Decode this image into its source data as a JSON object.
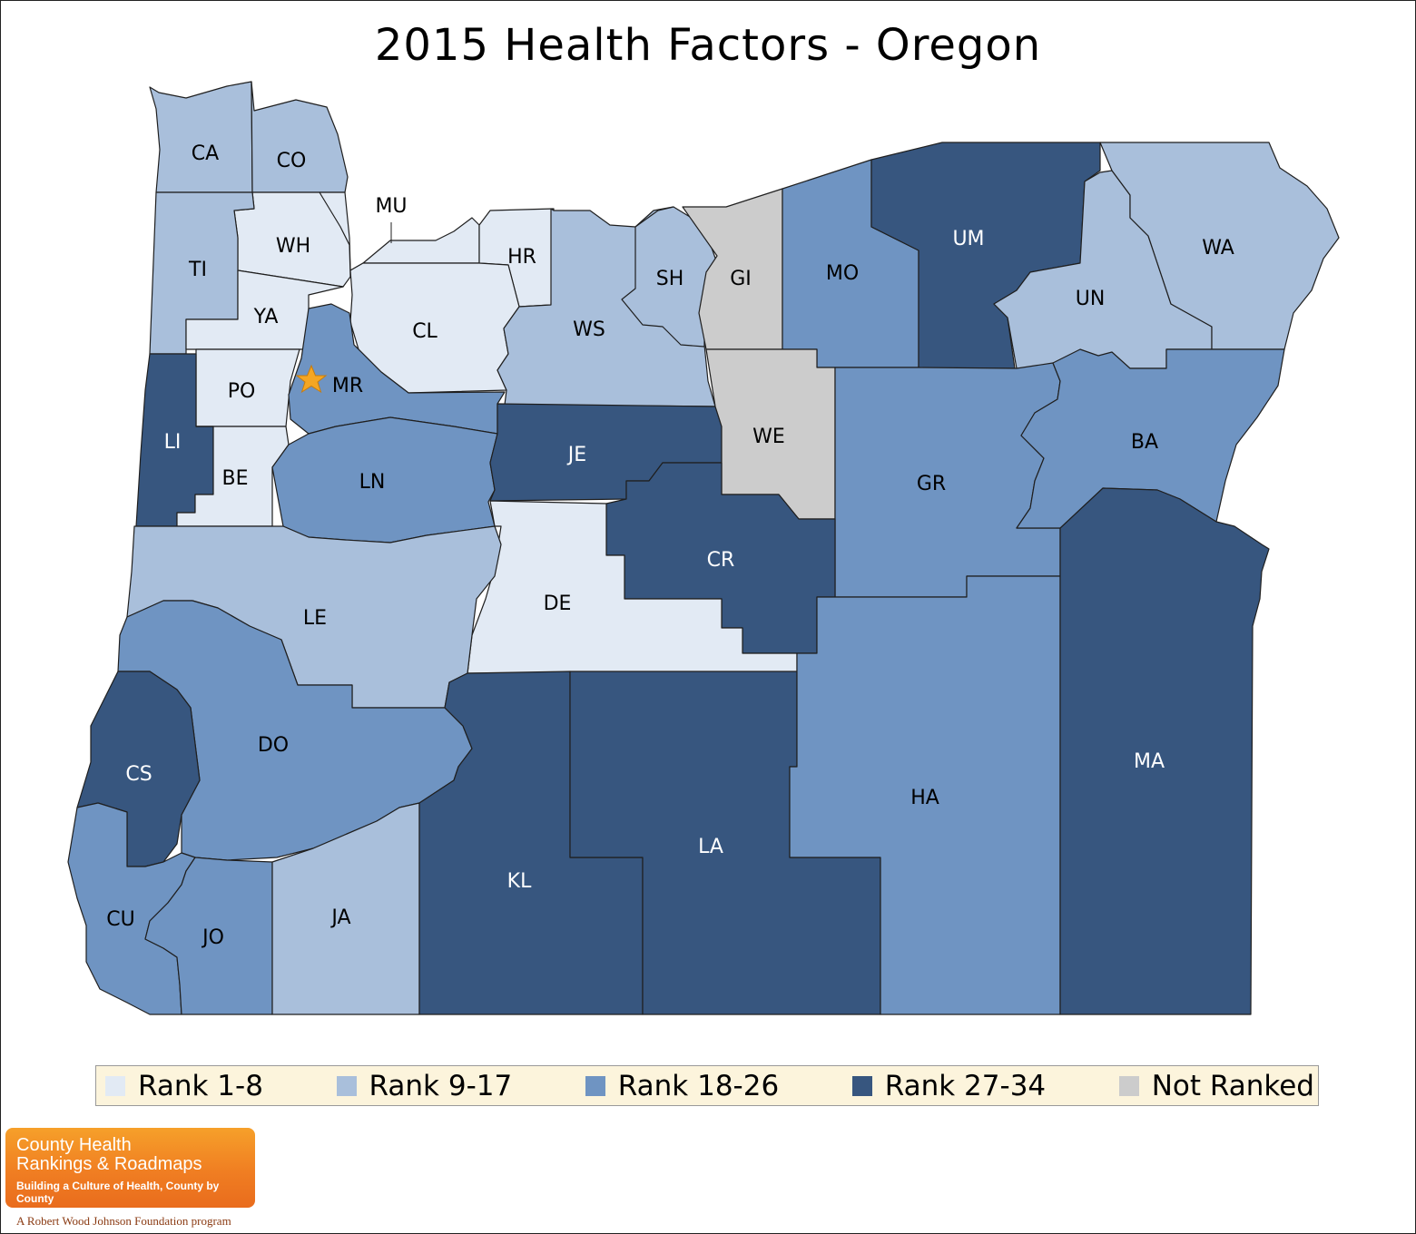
{
  "title": "2015 Health Factors - Oregon",
  "colors": {
    "rank_1_8": "#e2eaf4",
    "rank_9_17": "#a9bfdb",
    "rank_18_26": "#6f94c2",
    "rank_27_34": "#37567f",
    "not_ranked": "#cccccc",
    "marker": "#f5a623"
  },
  "counties": [
    {
      "abbr": "CA",
      "rank_group": "rank_9_17"
    },
    {
      "abbr": "CO",
      "rank_group": "rank_9_17"
    },
    {
      "abbr": "MU",
      "rank_group": "rank_1_8"
    },
    {
      "abbr": "WH",
      "rank_group": "rank_1_8"
    },
    {
      "abbr": "TI",
      "rank_group": "rank_9_17"
    },
    {
      "abbr": "YA",
      "rank_group": "rank_1_8"
    },
    {
      "abbr": "HR",
      "rank_group": "rank_1_8"
    },
    {
      "abbr": "CL",
      "rank_group": "rank_1_8"
    },
    {
      "abbr": "WS",
      "rank_group": "rank_9_17"
    },
    {
      "abbr": "SH",
      "rank_group": "rank_9_17"
    },
    {
      "abbr": "GI",
      "rank_group": "not_ranked"
    },
    {
      "abbr": "MO",
      "rank_group": "rank_18_26"
    },
    {
      "abbr": "UM",
      "rank_group": "rank_27_34"
    },
    {
      "abbr": "UN",
      "rank_group": "rank_9_17"
    },
    {
      "abbr": "WA",
      "rank_group": "rank_9_17"
    },
    {
      "abbr": "PO",
      "rank_group": "rank_1_8"
    },
    {
      "abbr": "MR",
      "rank_group": "rank_18_26"
    },
    {
      "abbr": "LI",
      "rank_group": "rank_27_34"
    },
    {
      "abbr": "BE",
      "rank_group": "rank_1_8"
    },
    {
      "abbr": "LN",
      "rank_group": "rank_18_26"
    },
    {
      "abbr": "JE",
      "rank_group": "rank_27_34"
    },
    {
      "abbr": "WE",
      "rank_group": "not_ranked"
    },
    {
      "abbr": "GR",
      "rank_group": "rank_18_26"
    },
    {
      "abbr": "BA",
      "rank_group": "rank_18_26"
    },
    {
      "abbr": "CR",
      "rank_group": "rank_27_34"
    },
    {
      "abbr": "DE",
      "rank_group": "rank_1_8"
    },
    {
      "abbr": "LE",
      "rank_group": "rank_9_17"
    },
    {
      "abbr": "DO",
      "rank_group": "rank_18_26"
    },
    {
      "abbr": "CS",
      "rank_group": "rank_27_34"
    },
    {
      "abbr": "CU",
      "rank_group": "rank_18_26"
    },
    {
      "abbr": "JO",
      "rank_group": "rank_18_26"
    },
    {
      "abbr": "JA",
      "rank_group": "rank_9_17"
    },
    {
      "abbr": "KL",
      "rank_group": "rank_27_34"
    },
    {
      "abbr": "LA",
      "rank_group": "rank_27_34"
    },
    {
      "abbr": "HA",
      "rank_group": "rank_18_26"
    },
    {
      "abbr": "MA",
      "rank_group": "rank_27_34"
    }
  ],
  "legend": [
    {
      "label": "Rank 1-8",
      "group": "rank_1_8"
    },
    {
      "label": "Rank 9-17",
      "group": "rank_9_17"
    },
    {
      "label": "Rank 18-26",
      "group": "rank_18_26"
    },
    {
      "label": "Rank 27-34",
      "group": "rank_27_34"
    },
    {
      "label": "Not Ranked",
      "group": "not_ranked"
    }
  ],
  "logo": {
    "line1": "County Health",
    "line2": "Rankings & Roadmaps",
    "tagline": "Building a Culture of Health, County by County",
    "program": "A Robert Wood Johnson Foundation program"
  }
}
